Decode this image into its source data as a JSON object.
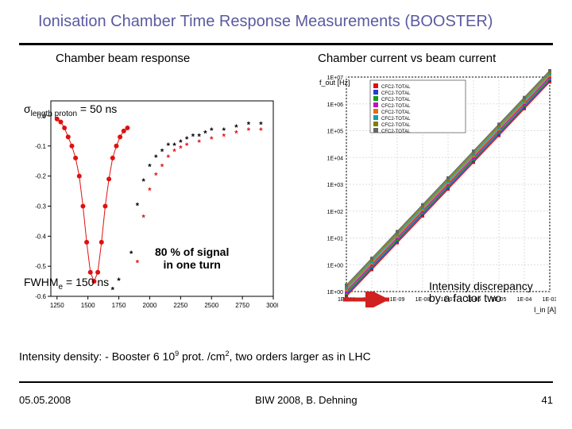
{
  "title": "Ionisation Chamber Time Response Measurements (BOOSTER)",
  "left_label": "Chamber beam response",
  "right_label": "Chamber current vs beam current",
  "sigma_text": "σ",
  "sigma_sub": "length proton",
  "sigma_val": " = 50 ns",
  "fwhm_text": "FWHM",
  "fwhm_sub": "e",
  "fwhm_val": " = 150 ns",
  "signal_line1": "80 % of signal",
  "signal_line2": "in one turn",
  "disc_line1": "Intensity discrepancy",
  "disc_line2": "by a factor two",
  "density_pre": "Intensity density: - Booster  6 10",
  "density_exp": "9",
  "density_mid": " prot. /cm",
  "density_exp2": "2",
  "density_post": ", two orders larger as in LHC",
  "footer_date": "05.05.2008",
  "footer_center": "BIW 2008, B. Dehning",
  "footer_page": "41",
  "colors": {
    "title": "#5a5aa0",
    "arrow": "#d02020",
    "line_red": "#e01010",
    "line_blue": "#2040d0",
    "line_green": "#10a010",
    "line_magenta": "#c010c0",
    "line_orange": "#e07010",
    "line_cyan": "#10a0b0",
    "point_red": "#e01010",
    "point_black": "#000000",
    "axis": "#000000"
  },
  "left_chart": {
    "type": "scatter",
    "xrange": [
      1200,
      3000
    ],
    "yrange": [
      -0.6,
      0.05
    ],
    "xticks": [
      1250,
      1500,
      1750,
      2000,
      2250,
      2500,
      2750,
      3000
    ],
    "yticks": [
      -0.6,
      -0.5,
      -0.4,
      -0.3,
      -0.2,
      -0.1,
      0.0
    ],
    "red_points": [
      [
        1250,
        -0.01
      ],
      [
        1280,
        -0.02
      ],
      [
        1310,
        -0.04
      ],
      [
        1340,
        -0.07
      ],
      [
        1370,
        -0.1
      ],
      [
        1400,
        -0.14
      ],
      [
        1430,
        -0.2
      ],
      [
        1460,
        -0.3
      ],
      [
        1490,
        -0.42
      ],
      [
        1520,
        -0.52
      ],
      [
        1550,
        -0.55
      ],
      [
        1580,
        -0.52
      ],
      [
        1610,
        -0.42
      ],
      [
        1640,
        -0.3
      ],
      [
        1670,
        -0.21
      ],
      [
        1700,
        -0.14
      ],
      [
        1730,
        -0.1
      ],
      [
        1760,
        -0.07
      ],
      [
        1790,
        -0.05
      ],
      [
        1820,
        -0.04
      ]
    ],
    "black_stars": [
      [
        1850,
        -0.46
      ],
      [
        1900,
        -0.3
      ],
      [
        1950,
        -0.22
      ],
      [
        2000,
        -0.17
      ],
      [
        2050,
        -0.14
      ],
      [
        2100,
        -0.12
      ],
      [
        2150,
        -0.1
      ],
      [
        2200,
        -0.1
      ],
      [
        2250,
        -0.09
      ],
      [
        2300,
        -0.08
      ],
      [
        2350,
        -0.07
      ],
      [
        2400,
        -0.07
      ],
      [
        2450,
        -0.06
      ],
      [
        2500,
        -0.05
      ],
      [
        2600,
        -0.05
      ],
      [
        2700,
        -0.04
      ],
      [
        2800,
        -0.03
      ],
      [
        2900,
        -0.03
      ],
      [
        1700,
        -0.58
      ],
      [
        1750,
        -0.55
      ]
    ],
    "red_stars": [
      [
        1900,
        -0.49
      ],
      [
        1950,
        -0.34
      ],
      [
        2000,
        -0.25
      ],
      [
        2050,
        -0.2
      ],
      [
        2100,
        -0.17
      ],
      [
        2150,
        -0.14
      ],
      [
        2200,
        -0.12
      ],
      [
        2250,
        -0.11
      ],
      [
        2300,
        -0.1
      ],
      [
        2400,
        -0.09
      ],
      [
        2500,
        -0.08
      ],
      [
        2600,
        -0.07
      ],
      [
        2700,
        -0.06
      ],
      [
        2800,
        -0.05
      ],
      [
        2900,
        -0.05
      ]
    ]
  },
  "right_chart": {
    "type": "loglog",
    "xlabel": "I_in [A]",
    "ylabel": "f_out [Hz]",
    "xrange_exp": [
      -11,
      -3
    ],
    "yrange_exp": [
      -1,
      7
    ],
    "xticks_exp": [
      -11,
      -10,
      -9,
      -8,
      -7,
      -6,
      -5,
      -4,
      -3
    ],
    "yticks_exp": [
      -1,
      0,
      1,
      2,
      3,
      4,
      5,
      6,
      7
    ],
    "lines_colors": [
      "#e01010",
      "#2040d0",
      "#10a010",
      "#c010c0",
      "#e07010",
      "#10a0b0",
      "#808000",
      "#666666"
    ],
    "line_path": [
      [
        -11,
        -1
      ],
      [
        -3,
        7
      ]
    ]
  }
}
